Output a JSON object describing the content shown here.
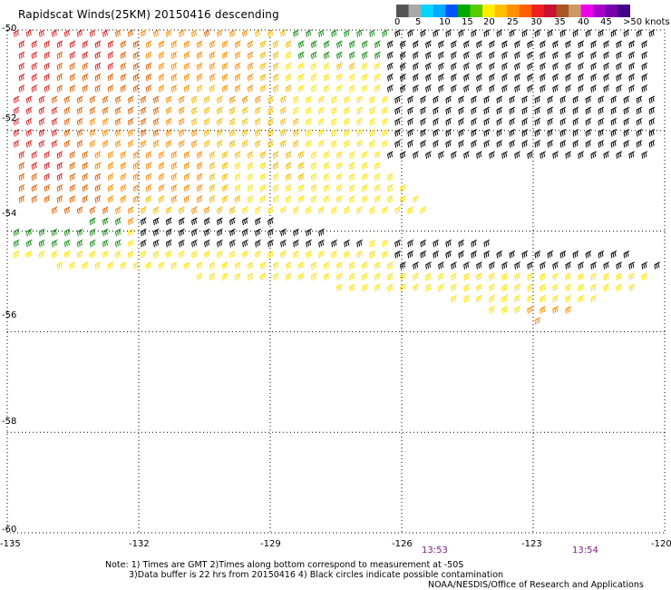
{
  "title": "Rapidscat Winds(25KM) 20150416 descending",
  "colorbar": {
    "colors": [
      "#555555",
      "#a8a8a8",
      "#00d5ff",
      "#00aaff",
      "#0055ff",
      "#00aa00",
      "#55cc00",
      "#ffee00",
      "#ffc000",
      "#ff9000",
      "#ff6000",
      "#ee2020",
      "#cc1030",
      "#aa5522",
      "#cc9966",
      "#ee00ee",
      "#aa00cc",
      "#7700aa",
      "#440088"
    ],
    "labels": [
      "0",
      "5",
      "10",
      "15",
      "20",
      "25",
      "30",
      "35",
      "40",
      "45",
      ">50 knots"
    ]
  },
  "lat_labels": [
    "-50",
    "-52",
    "-54",
    "-56",
    "-58",
    "-60"
  ],
  "lon_labels": [
    "-135",
    "-132",
    "-129",
    "-126",
    "-123",
    "-120"
  ],
  "time_labels": [
    "13:53",
    "13:54"
  ],
  "notes": {
    "line1": "Note: 1) Times are GMT 2)Times along bottom correspond to measurement at -50S",
    "line2": "3)Data buffer is 22 hrs from 20150416 4) Black circles indicate possible contamination",
    "line3": "NOAA/NESDIS/Office of Research and Applications"
  },
  "chart_data": {
    "type": "wind_barb_map",
    "lon_range": [
      -135,
      -120
    ],
    "lat_range": [
      -60,
      -50
    ],
    "grid": true,
    "palette": {
      "black": "#000000",
      "green": "#118811",
      "yellow": "#ffe000",
      "gold": "#f2b800",
      "orange": "#ff8a00",
      "darkorange": "#e06000",
      "red": "#dd2020"
    }
  }
}
